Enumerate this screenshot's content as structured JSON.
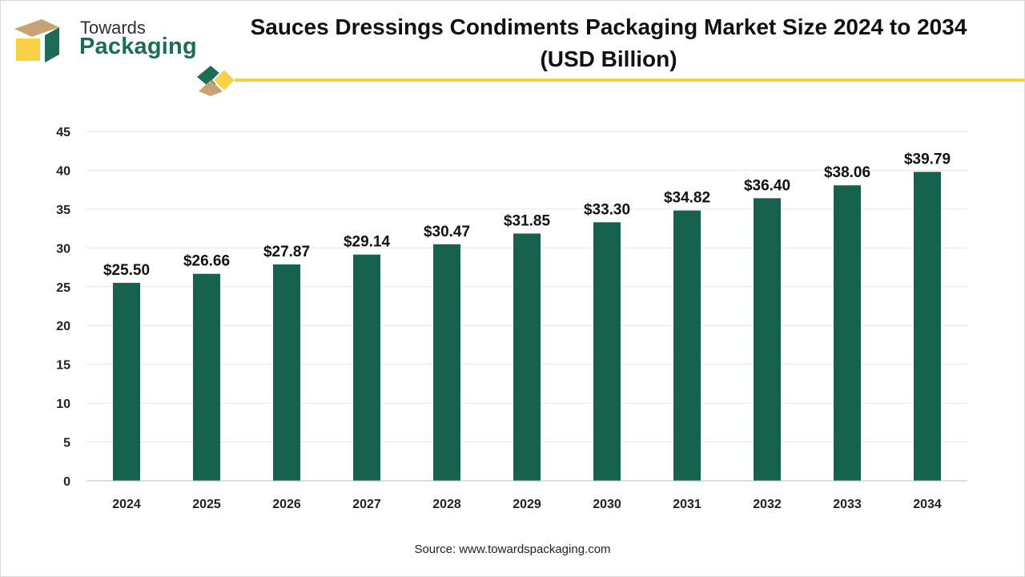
{
  "header": {
    "logo_line1": "Towards",
    "logo_line2": "Packaging",
    "title_line1": "Sauces Dressings Condiments Packaging Market Size 2024 to 2034",
    "title_line2": "(USD Billion)"
  },
  "colors": {
    "bar": "#17624f",
    "accent_green": "#1e6b57",
    "accent_yellow": "#f7d046",
    "accent_tan": "#c9a273",
    "grid": "#e6e6e6"
  },
  "chart_data": {
    "type": "bar",
    "title": "Sauces Dressings Condiments Packaging Market Size 2024 to 2034 (USD Billion)",
    "categories": [
      "2024",
      "2025",
      "2026",
      "2027",
      "2028",
      "2029",
      "2030",
      "2031",
      "2032",
      "2033",
      "2034"
    ],
    "values": [
      25.5,
      26.66,
      27.87,
      29.14,
      30.47,
      31.85,
      33.3,
      34.82,
      36.4,
      38.06,
      39.79
    ],
    "labels": [
      "$25.50",
      "$26.66",
      "$27.87",
      "$29.14",
      "$30.47",
      "$31.85",
      "$33.30",
      "$34.82",
      "$36.40",
      "$38.06",
      "$39.79"
    ],
    "yticks": [
      "0",
      "5",
      "10",
      "15",
      "20",
      "25",
      "30",
      "35",
      "40",
      "45"
    ],
    "ylim": [
      0,
      45
    ],
    "xlabel": "",
    "ylabel": "",
    "grid": true,
    "legend": "none"
  },
  "footer": {
    "source": "Source: www.towardspackaging.com"
  }
}
